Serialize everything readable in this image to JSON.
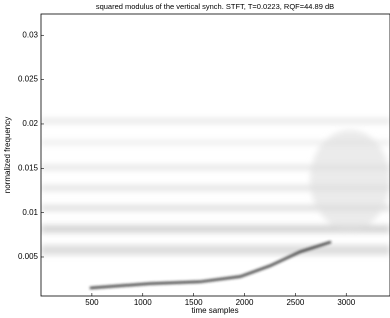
{
  "chart_data": {
    "type": "spectrogram",
    "title": "squared modulus of the vertical synch. STFT, T=0.0223, RQF=44.89 dB",
    "x_label": "time samples",
    "y_label": "normalized frequency",
    "x": [
      480,
      1070,
      1560,
      1960,
      2250,
      2550,
      2850
    ],
    "values": [
      0.0015,
      0.002,
      0.0022,
      0.0028,
      0.004,
      0.0056,
      0.0067
    ],
    "color": "#222222",
    "xlim": [
      0,
      3430
    ],
    "ylim": [
      0.0006,
      0.0324
    ],
    "xticks": [
      500,
      1000,
      1500,
      2000,
      2500,
      3000
    ],
    "yticks": [
      0.005,
      0.01,
      0.015,
      0.02,
      0.025,
      0.03
    ]
  }
}
